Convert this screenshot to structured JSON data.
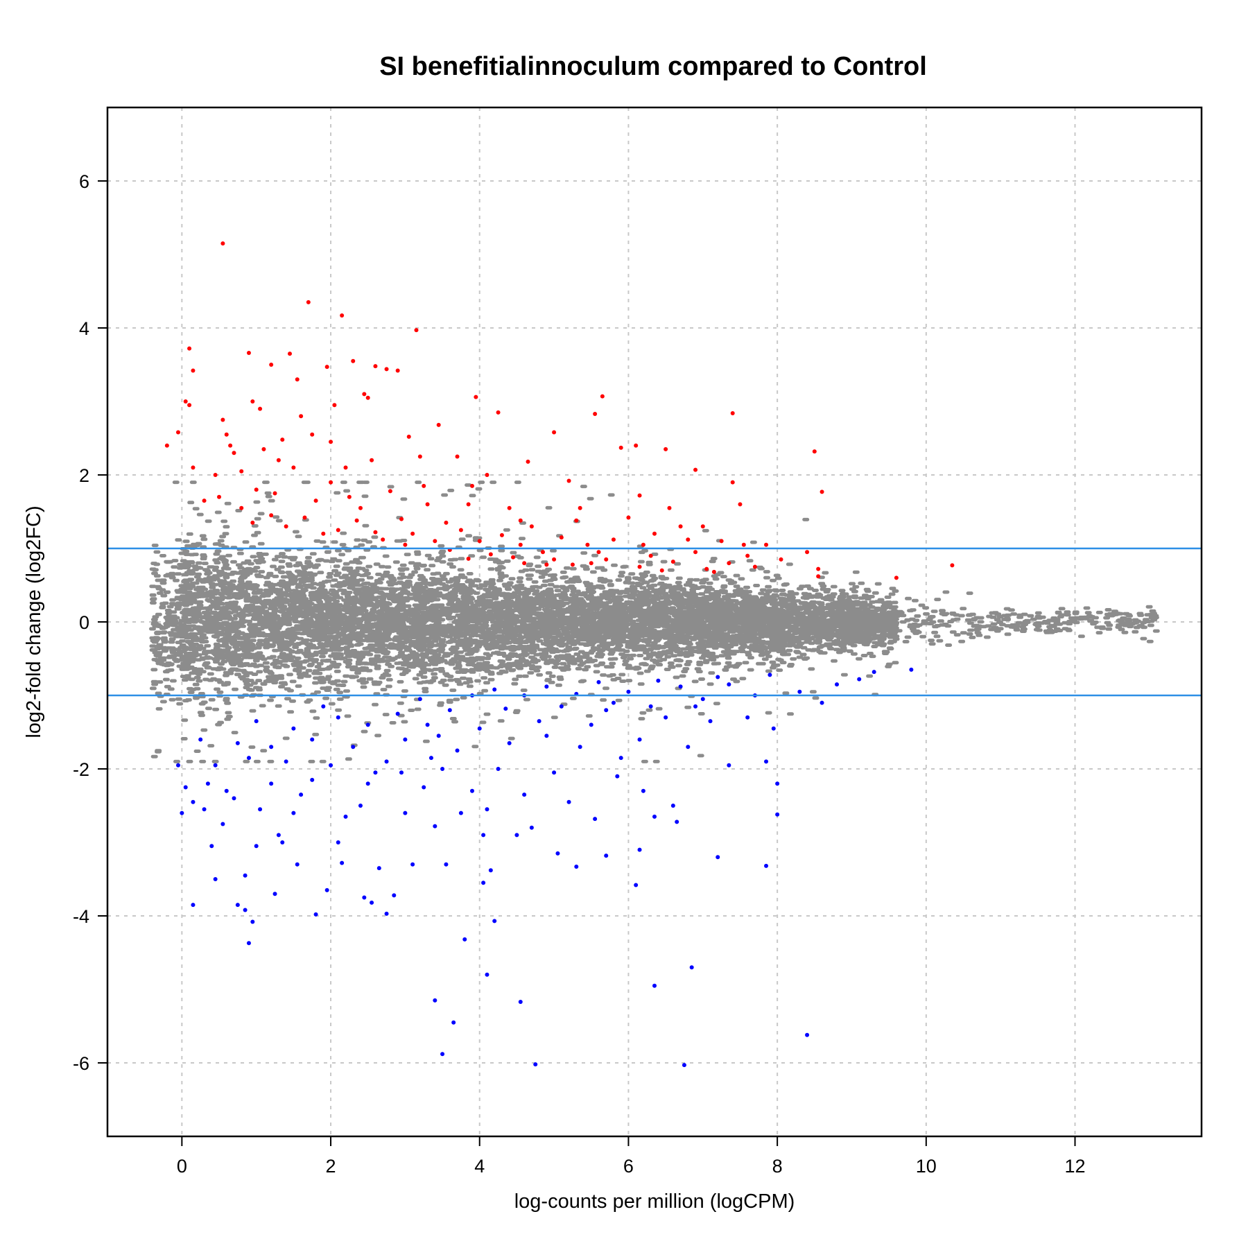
{
  "chart_data": {
    "type": "scatter",
    "title": "SI benefitialinnoculum compared to Control",
    "xlabel": "log-counts per million (logCPM)",
    "ylabel": "log2-fold change (log2FC)",
    "xlim": [
      -1,
      13.7
    ],
    "ylim": [
      -7,
      7
    ],
    "xticks": [
      0,
      2,
      4,
      6,
      8,
      10,
      12
    ],
    "yticks": [
      -6,
      -4,
      -2,
      0,
      2,
      4,
      6
    ],
    "grid": true,
    "hlines": [
      1,
      -1
    ],
    "colors": {
      "not_significant": "#8c8c8c",
      "up": "#ff0000",
      "down": "#0000ff",
      "reference_lines": "#2d8fe6"
    },
    "series": [
      {
        "key": "up",
        "color": "#ff0000",
        "points": [
          [
            0.55,
            5.15
          ],
          [
            1.7,
            4.35
          ],
          [
            2.15,
            4.17
          ],
          [
            3.15,
            3.97
          ],
          [
            0.1,
            3.72
          ],
          [
            0.9,
            3.66
          ],
          [
            1.45,
            3.65
          ],
          [
            1.95,
            3.47
          ],
          [
            2.3,
            3.55
          ],
          [
            2.6,
            3.48
          ],
          [
            2.75,
            3.44
          ],
          [
            2.9,
            3.42
          ],
          [
            0.15,
            3.42
          ],
          [
            1.2,
            3.5
          ],
          [
            1.55,
            3.3
          ],
          [
            2.45,
            3.1
          ],
          [
            2.5,
            3.05
          ],
          [
            3.95,
            3.06
          ],
          [
            5.65,
            3.07
          ],
          [
            7.4,
            2.84
          ],
          [
            0.05,
            3.0
          ],
          [
            0.1,
            2.95
          ],
          [
            0.95,
            3.0
          ],
          [
            1.05,
            2.9
          ],
          [
            1.6,
            2.8
          ],
          [
            2.05,
            2.95
          ],
          [
            3.05,
            2.52
          ],
          [
            3.45,
            2.68
          ],
          [
            4.25,
            2.85
          ],
          [
            5.55,
            2.83
          ],
          [
            5.0,
            2.58
          ],
          [
            0.55,
            2.75
          ],
          [
            0.6,
            2.55
          ],
          [
            1.35,
            2.48
          ],
          [
            1.75,
            2.55
          ],
          [
            2.0,
            2.45
          ],
          [
            0.65,
            2.4
          ],
          [
            0.7,
            2.3
          ],
          [
            1.1,
            2.35
          ],
          [
            3.2,
            2.25
          ],
          [
            5.9,
            2.37
          ],
          [
            6.1,
            2.4
          ],
          [
            6.5,
            2.35
          ],
          [
            8.5,
            2.32
          ],
          [
            6.9,
            2.07
          ],
          [
            -0.2,
            2.4
          ],
          [
            -0.05,
            2.58
          ],
          [
            0.15,
            2.1
          ],
          [
            0.45,
            2.0
          ],
          [
            0.8,
            2.05
          ],
          [
            1.5,
            2.1
          ],
          [
            2.55,
            2.2
          ],
          [
            3.7,
            2.25
          ],
          [
            4.1,
            2.0
          ],
          [
            4.65,
            2.18
          ],
          [
            5.2,
            1.92
          ],
          [
            7.4,
            1.9
          ],
          [
            8.6,
            1.77
          ],
          [
            0.3,
            1.65
          ],
          [
            0.5,
            1.7
          ],
          [
            1.0,
            1.8
          ],
          [
            1.25,
            1.75
          ],
          [
            1.8,
            1.65
          ],
          [
            2.25,
            1.7
          ],
          [
            2.8,
            1.78
          ],
          [
            3.3,
            1.6
          ],
          [
            3.85,
            1.6
          ],
          [
            4.4,
            1.55
          ],
          [
            6.15,
            1.72
          ],
          [
            6.55,
            1.55
          ],
          [
            7.5,
            1.6
          ],
          [
            1.2,
            1.45
          ],
          [
            1.65,
            1.42
          ],
          [
            2.35,
            1.38
          ],
          [
            2.95,
            1.4
          ],
          [
            3.55,
            1.35
          ],
          [
            4.7,
            1.3
          ],
          [
            5.3,
            1.38
          ],
          [
            6.0,
            1.42
          ],
          [
            7.0,
            1.3
          ],
          [
            0.8,
            1.55
          ],
          [
            1.4,
            1.3
          ],
          [
            2.1,
            1.25
          ],
          [
            2.6,
            1.22
          ],
          [
            3.1,
            1.2
          ],
          [
            3.75,
            1.25
          ],
          [
            4.3,
            1.18
          ],
          [
            5.1,
            1.15
          ],
          [
            5.8,
            1.12
          ],
          [
            6.35,
            1.2
          ],
          [
            7.25,
            1.1
          ],
          [
            7.85,
            1.05
          ],
          [
            2.7,
            1.12
          ],
          [
            3.4,
            1.1
          ],
          [
            4.0,
            1.1
          ],
          [
            4.55,
            1.05
          ],
          [
            5.45,
            1.05
          ],
          [
            6.2,
            1.05
          ],
          [
            6.8,
            1.12
          ],
          [
            3.0,
            1.05
          ],
          [
            3.6,
            0.98
          ],
          [
            4.15,
            0.92
          ],
          [
            4.85,
            0.95
          ],
          [
            5.6,
            0.95
          ],
          [
            6.3,
            0.9
          ],
          [
            6.9,
            0.95
          ],
          [
            7.6,
            0.9
          ],
          [
            8.4,
            0.95
          ],
          [
            4.45,
            0.88
          ],
          [
            5.0,
            0.85
          ],
          [
            5.7,
            0.85
          ],
          [
            6.6,
            0.82
          ],
          [
            7.35,
            0.8
          ],
          [
            8.05,
            0.85
          ],
          [
            8.55,
            0.72
          ],
          [
            4.9,
            0.78
          ],
          [
            5.5,
            0.8
          ],
          [
            6.15,
            0.75
          ],
          [
            7.05,
            0.72
          ],
          [
            7.7,
            0.75
          ],
          [
            9.6,
            0.6
          ],
          [
            10.35,
            0.77
          ],
          [
            3.85,
            0.86
          ],
          [
            4.6,
            0.8
          ],
          [
            5.25,
            0.78
          ],
          [
            6.45,
            0.7
          ],
          [
            7.15,
            0.68
          ],
          [
            8.55,
            0.62
          ],
          [
            2.0,
            1.9
          ],
          [
            2.4,
            1.55
          ],
          [
            1.9,
            1.2
          ],
          [
            0.95,
            1.35
          ],
          [
            3.25,
            1.85
          ],
          [
            4.55,
            1.38
          ],
          [
            5.35,
            1.55
          ],
          [
            6.7,
            1.3
          ],
          [
            7.55,
            1.05
          ],
          [
            3.9,
            1.85
          ],
          [
            2.2,
            2.1
          ],
          [
            1.3,
            2.2
          ]
        ]
      },
      {
        "key": "down",
        "color": "#0000ff",
        "points": [
          [
            4.75,
            -6.02
          ],
          [
            6.75,
            -6.03
          ],
          [
            3.5,
            -5.88
          ],
          [
            3.65,
            -5.45
          ],
          [
            8.4,
            -5.62
          ],
          [
            3.4,
            -5.15
          ],
          [
            4.55,
            -5.17
          ],
          [
            6.35,
            -4.95
          ],
          [
            6.85,
            -4.7
          ],
          [
            4.1,
            -4.8
          ],
          [
            0.9,
            -4.37
          ],
          [
            3.8,
            -4.32
          ],
          [
            0.95,
            -4.08
          ],
          [
            4.2,
            -4.07
          ],
          [
            0.15,
            -3.85
          ],
          [
            1.8,
            -3.98
          ],
          [
            2.75,
            -3.97
          ],
          [
            0.75,
            -3.85
          ],
          [
            0.85,
            -3.92
          ],
          [
            1.25,
            -3.7
          ],
          [
            1.95,
            -3.65
          ],
          [
            2.45,
            -3.75
          ],
          [
            2.55,
            -3.82
          ],
          [
            2.85,
            -3.72
          ],
          [
            4.05,
            -3.55
          ],
          [
            6.1,
            -3.58
          ],
          [
            0.45,
            -3.5
          ],
          [
            0.85,
            -3.45
          ],
          [
            1.55,
            -3.3
          ],
          [
            2.15,
            -3.28
          ],
          [
            2.65,
            -3.35
          ],
          [
            3.1,
            -3.3
          ],
          [
            3.55,
            -3.3
          ],
          [
            4.15,
            -3.38
          ],
          [
            5.3,
            -3.33
          ],
          [
            7.2,
            -3.2
          ],
          [
            7.85,
            -3.32
          ],
          [
            0.4,
            -3.05
          ],
          [
            1.0,
            -3.05
          ],
          [
            1.35,
            -3.0
          ],
          [
            2.1,
            -3.0
          ],
          [
            3.4,
            -2.78
          ],
          [
            4.05,
            -2.9
          ],
          [
            5.05,
            -3.15
          ],
          [
            5.7,
            -3.18
          ],
          [
            6.15,
            -3.1
          ],
          [
            0.0,
            -2.6
          ],
          [
            0.15,
            -2.45
          ],
          [
            0.3,
            -2.55
          ],
          [
            0.7,
            -2.4
          ],
          [
            1.05,
            -2.55
          ],
          [
            1.5,
            -2.6
          ],
          [
            2.4,
            -2.5
          ],
          [
            3.0,
            -2.6
          ],
          [
            4.7,
            -2.8
          ],
          [
            5.55,
            -2.68
          ],
          [
            6.35,
            -2.65
          ],
          [
            6.65,
            -2.72
          ],
          [
            8.0,
            -2.62
          ],
          [
            0.05,
            -2.25
          ],
          [
            0.35,
            -2.2
          ],
          [
            0.6,
            -2.3
          ],
          [
            1.2,
            -2.2
          ],
          [
            1.75,
            -2.15
          ],
          [
            2.5,
            -2.2
          ],
          [
            3.25,
            -2.25
          ],
          [
            3.9,
            -2.3
          ],
          [
            4.6,
            -2.35
          ],
          [
            5.2,
            -2.45
          ],
          [
            6.6,
            -2.5
          ],
          [
            8.0,
            -2.2
          ],
          [
            -0.05,
            -1.95
          ],
          [
            0.45,
            -1.95
          ],
          [
            0.9,
            -1.85
          ],
          [
            1.4,
            -1.9
          ],
          [
            2.0,
            -1.95
          ],
          [
            2.75,
            -1.9
          ],
          [
            3.5,
            -2.0
          ],
          [
            4.25,
            -2.0
          ],
          [
            5.0,
            -2.05
          ],
          [
            5.85,
            -2.1
          ],
          [
            7.35,
            -1.95
          ],
          [
            7.85,
            -1.9
          ],
          [
            0.25,
            -1.6
          ],
          [
            0.75,
            -1.65
          ],
          [
            1.2,
            -1.7
          ],
          [
            1.75,
            -1.6
          ],
          [
            2.3,
            -1.7
          ],
          [
            3.0,
            -1.6
          ],
          [
            3.7,
            -1.75
          ],
          [
            4.4,
            -1.65
          ],
          [
            5.35,
            -1.7
          ],
          [
            6.15,
            -1.6
          ],
          [
            6.8,
            -1.7
          ],
          [
            7.95,
            -1.45
          ],
          [
            1.5,
            -1.45
          ],
          [
            2.5,
            -1.4
          ],
          [
            3.3,
            -1.4
          ],
          [
            4.0,
            -1.45
          ],
          [
            4.8,
            -1.35
          ],
          [
            5.5,
            -1.4
          ],
          [
            6.5,
            -1.3
          ],
          [
            7.1,
            -1.35
          ],
          [
            7.6,
            -1.3
          ],
          [
            2.1,
            -1.3
          ],
          [
            2.9,
            -1.25
          ],
          [
            3.6,
            -1.2
          ],
          [
            4.35,
            -1.18
          ],
          [
            5.1,
            -1.15
          ],
          [
            5.8,
            -1.1
          ],
          [
            6.3,
            -1.15
          ],
          [
            7.0,
            -1.05
          ],
          [
            7.7,
            -1.0
          ],
          [
            8.6,
            -1.1
          ],
          [
            3.2,
            -1.05
          ],
          [
            3.9,
            -1.0
          ],
          [
            4.6,
            -1.0
          ],
          [
            5.3,
            -0.98
          ],
          [
            6.0,
            -0.95
          ],
          [
            6.7,
            -0.88
          ],
          [
            7.35,
            -0.85
          ],
          [
            8.3,
            -0.95
          ],
          [
            9.1,
            -0.78
          ],
          [
            9.8,
            -0.65
          ],
          [
            4.2,
            -0.92
          ],
          [
            4.9,
            -0.88
          ],
          [
            5.6,
            -0.82
          ],
          [
            6.4,
            -0.8
          ],
          [
            7.2,
            -0.75
          ],
          [
            7.9,
            -0.72
          ],
          [
            9.3,
            -0.68
          ],
          [
            1.0,
            -1.35
          ],
          [
            1.9,
            -1.15
          ],
          [
            2.6,
            -2.05
          ],
          [
            3.45,
            -1.55
          ],
          [
            4.9,
            -1.55
          ],
          [
            5.7,
            -1.2
          ],
          [
            6.9,
            -1.15
          ],
          [
            1.3,
            -2.9
          ],
          [
            2.95,
            -2.05
          ],
          [
            3.75,
            -2.6
          ],
          [
            4.5,
            -2.9
          ],
          [
            5.9,
            -1.85
          ],
          [
            6.2,
            -2.3
          ],
          [
            8.8,
            -0.85
          ],
          [
            0.55,
            -2.75
          ],
          [
            1.6,
            -2.35
          ],
          [
            2.2,
            -2.65
          ],
          [
            3.35,
            -1.85
          ],
          [
            4.1,
            -2.55
          ]
        ]
      }
    ]
  }
}
